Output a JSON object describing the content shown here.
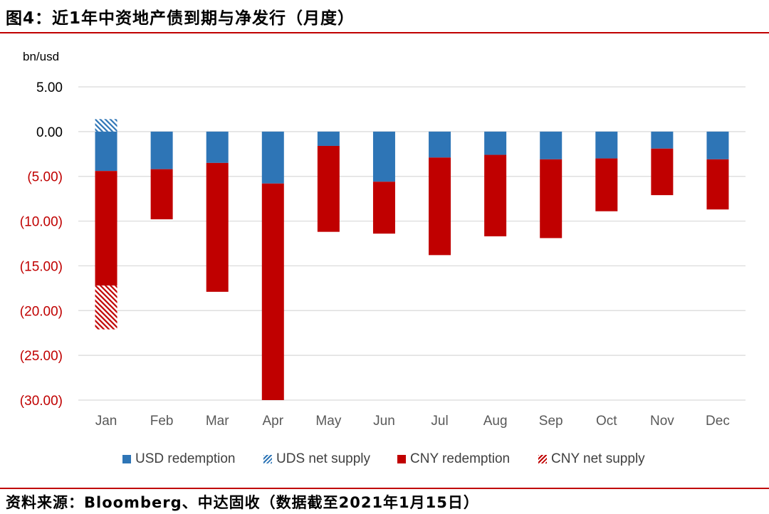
{
  "title": "图4：近1年中资地产债到期与净发行（月度）",
  "source": "资料来源：Bloomberg、中达固收（数据截至2021年1月15日）",
  "unit_label": "bn/usd",
  "colors": {
    "usd": "#2e75b6",
    "cny": "#c00000",
    "rule": "#c00000",
    "grid": "#d9d9d9",
    "neg_tick": "#c00000"
  },
  "chart_data": {
    "type": "bar",
    "stacked": true,
    "title": "近1年中资地产债到期与净发行（月度）",
    "ylabel": "bn/usd",
    "xlabel": "",
    "ylim": [
      -30,
      5
    ],
    "ytick_step": 5,
    "y_tick_labels": [
      "5.00",
      "0.00",
      "(5.00)",
      "(10.00)",
      "(15.00)",
      "(20.00)",
      "(25.00)",
      "(30.00)"
    ],
    "categories": [
      "Jan",
      "Feb",
      "Mar",
      "Apr",
      "May",
      "Jun",
      "Jul",
      "Aug",
      "Sep",
      "Oct",
      "Nov",
      "Dec"
    ],
    "series": [
      {
        "name": "USD redemption",
        "pattern": "solid",
        "color": "usd",
        "values": [
          -4.4,
          -4.2,
          -3.5,
          -5.8,
          -1.6,
          -5.6,
          -2.9,
          -2.6,
          -3.1,
          -3.0,
          -1.9,
          -3.1
        ]
      },
      {
        "name": "UDS net supply",
        "pattern": "hatch",
        "color": "usd",
        "values": [
          1.4,
          0,
          0,
          0,
          0,
          0,
          0,
          0,
          0,
          0,
          0,
          0
        ]
      },
      {
        "name": "CNY redemption",
        "pattern": "solid",
        "color": "cny",
        "values": [
          -12.8,
          -5.6,
          -14.4,
          -24.2,
          -9.6,
          -5.8,
          -10.9,
          -9.1,
          -8.8,
          -5.9,
          -5.2,
          -5.6
        ]
      },
      {
        "name": "CNY net supply",
        "pattern": "hatch",
        "color": "cny",
        "values": [
          -4.9,
          0,
          0,
          0,
          0,
          0,
          0,
          0,
          0,
          0,
          0,
          0
        ]
      }
    ]
  }
}
